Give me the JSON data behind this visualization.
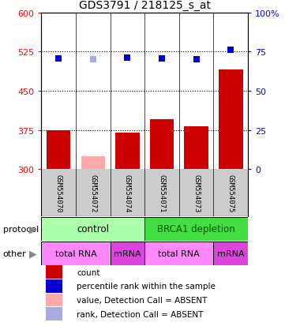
{
  "title": "GDS3791 / 218125_s_at",
  "samples": [
    "GSM554070",
    "GSM554072",
    "GSM554074",
    "GSM554071",
    "GSM554073",
    "GSM554075"
  ],
  "bar_values": [
    375,
    325,
    370,
    395,
    382,
    490
  ],
  "bar_colors": [
    "#cc0000",
    "#ffaaaa",
    "#cc0000",
    "#cc0000",
    "#cc0000",
    "#cc0000"
  ],
  "dot_values": [
    512,
    510,
    514,
    512,
    511,
    528
  ],
  "dot_colors": [
    "#0000cc",
    "#aaaadd",
    "#0000cc",
    "#0000cc",
    "#0000cc",
    "#0000cc"
  ],
  "ylim_left": [
    300,
    600
  ],
  "ylim_right": [
    0,
    100
  ],
  "yticks_left": [
    300,
    375,
    450,
    525,
    600
  ],
  "yticks_right": [
    0,
    25,
    50,
    75,
    100
  ],
  "hlines": [
    375,
    450,
    525
  ],
  "protocol_color_ctrl": "#aaffaa",
  "protocol_color_brca": "#44dd44",
  "other_color_light": "#ff88ff",
  "other_color_dark": "#dd44dd",
  "legend_colors": [
    "#cc0000",
    "#0000cc",
    "#ffaaaa",
    "#aaaadd"
  ],
  "legend_labels": [
    "count",
    "percentile rank within the sample",
    "value, Detection Call = ABSENT",
    "rank, Detection Call = ABSENT"
  ],
  "bar_width": 0.7,
  "dot_size": 30
}
